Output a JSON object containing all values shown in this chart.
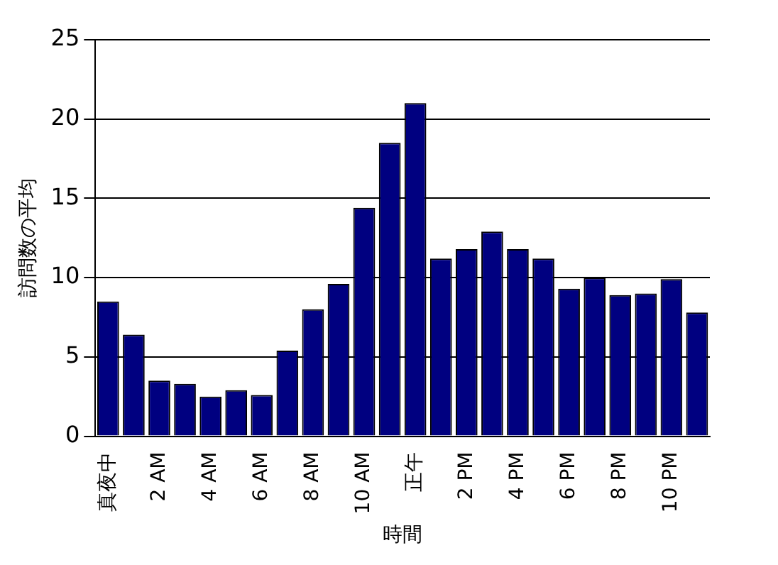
{
  "chart_data": {
    "type": "bar",
    "xlabel": "時間",
    "ylabel": "訪問数の平均",
    "categories": [
      "真夜中",
      null,
      "2 AM",
      null,
      "4 AM",
      null,
      "6 AM",
      null,
      "8 AM",
      null,
      "10 AM",
      null,
      "正午",
      null,
      "2 PM",
      null,
      "4 PM",
      null,
      "6 PM",
      null,
      "8 PM",
      null,
      "10 PM",
      null
    ],
    "values": [
      8.5,
      6.4,
      3.5,
      3.3,
      2.5,
      2.9,
      2.6,
      5.4,
      8.0,
      9.6,
      14.4,
      18.5,
      21.0,
      11.2,
      11.8,
      12.9,
      11.8,
      11.2,
      9.3,
      10.0,
      8.9,
      9.0,
      9.9,
      7.8
    ],
    "color": "#000080",
    "ylim": [
      0,
      25
    ],
    "yticks": [
      0,
      5,
      10,
      15,
      20,
      25
    ],
    "grid": "y"
  }
}
